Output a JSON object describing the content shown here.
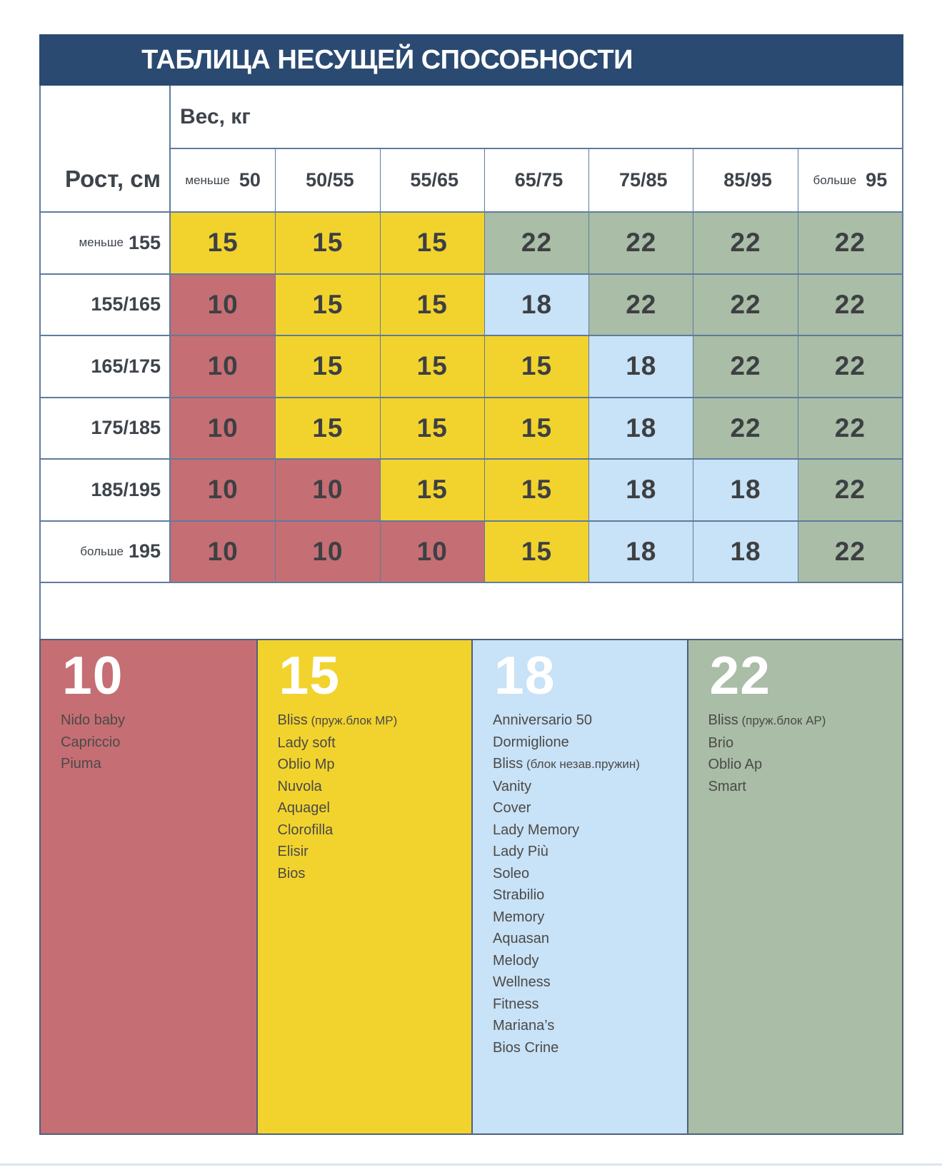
{
  "colors": {
    "navy": "#2b4a72",
    "red": "#c56e74",
    "yellow": "#f2d32e",
    "blue": "#c8e2f7",
    "green": "#a9bda7",
    "grid": "#5f7b9c",
    "lborder": "#4f607a",
    "ink": "#3d4043",
    "head": "#3e444b",
    "product": "#4b4a47",
    "pageline": "#dde5ef"
  },
  "title": "ТАБЛИЦА НЕСУЩЕЙ СПОСОБНОСТИ",
  "axes": {
    "weight_label": "Вес, кг",
    "height_label": "Рост, см"
  },
  "weight_columns": [
    {
      "prefix": "меньше",
      "value": "50"
    },
    {
      "prefix": "",
      "value": "50/55"
    },
    {
      "prefix": "",
      "value": "55/65"
    },
    {
      "prefix": "",
      "value": "65/75"
    },
    {
      "prefix": "",
      "value": "75/85"
    },
    {
      "prefix": "",
      "value": "85/95"
    },
    {
      "prefix": "больше",
      "value": "95"
    }
  ],
  "rows": [
    {
      "prefix": "меньше",
      "value": "155",
      "cells": [
        {
          "v": "15",
          "tone": "yellow"
        },
        {
          "v": "15",
          "tone": "yellow"
        },
        {
          "v": "15",
          "tone": "yellow"
        },
        {
          "v": "22",
          "tone": "green"
        },
        {
          "v": "22",
          "tone": "green"
        },
        {
          "v": "22",
          "tone": "green"
        },
        {
          "v": "22",
          "tone": "green"
        }
      ]
    },
    {
      "prefix": "",
      "value": "155/165",
      "cells": [
        {
          "v": "10",
          "tone": "red"
        },
        {
          "v": "15",
          "tone": "yellow"
        },
        {
          "v": "15",
          "tone": "yellow"
        },
        {
          "v": "18",
          "tone": "blue"
        },
        {
          "v": "22",
          "tone": "green"
        },
        {
          "v": "22",
          "tone": "green"
        },
        {
          "v": "22",
          "tone": "green"
        }
      ]
    },
    {
      "prefix": "",
      "value": "165/175",
      "cells": [
        {
          "v": "10",
          "tone": "red"
        },
        {
          "v": "15",
          "tone": "yellow"
        },
        {
          "v": "15",
          "tone": "yellow"
        },
        {
          "v": "15",
          "tone": "yellow"
        },
        {
          "v": "18",
          "tone": "blue"
        },
        {
          "v": "22",
          "tone": "green"
        },
        {
          "v": "22",
          "tone": "green"
        }
      ]
    },
    {
      "prefix": "",
      "value": "175/185",
      "cells": [
        {
          "v": "10",
          "tone": "red"
        },
        {
          "v": "15",
          "tone": "yellow"
        },
        {
          "v": "15",
          "tone": "yellow"
        },
        {
          "v": "15",
          "tone": "yellow"
        },
        {
          "v": "18",
          "tone": "blue"
        },
        {
          "v": "22",
          "tone": "green"
        },
        {
          "v": "22",
          "tone": "green"
        }
      ]
    },
    {
      "prefix": "",
      "value": "185/195",
      "cells": [
        {
          "v": "10",
          "tone": "red"
        },
        {
          "v": "10",
          "tone": "red"
        },
        {
          "v": "15",
          "tone": "yellow"
        },
        {
          "v": "15",
          "tone": "yellow"
        },
        {
          "v": "18",
          "tone": "blue"
        },
        {
          "v": "18",
          "tone": "blue"
        },
        {
          "v": "22",
          "tone": "green"
        }
      ]
    },
    {
      "prefix": "больше",
      "value": "195",
      "cells": [
        {
          "v": "10",
          "tone": "red"
        },
        {
          "v": "10",
          "tone": "red"
        },
        {
          "v": "10",
          "tone": "red"
        },
        {
          "v": "15",
          "tone": "yellow"
        },
        {
          "v": "18",
          "tone": "blue"
        },
        {
          "v": "18",
          "tone": "blue"
        },
        {
          "v": "22",
          "tone": "green"
        }
      ]
    }
  ],
  "legend": [
    {
      "score": "10",
      "tone": "red",
      "products": [
        {
          "name": "Nido baby",
          "note": ""
        },
        {
          "name": "Capriccio",
          "note": ""
        },
        {
          "name": "Piuma",
          "note": ""
        }
      ]
    },
    {
      "score": "15",
      "tone": "yellow",
      "products": [
        {
          "name": "Bliss",
          "note": "(пруж.блок MP)"
        },
        {
          "name": "Lady soft",
          "note": ""
        },
        {
          "name": "Oblio Mp",
          "note": ""
        },
        {
          "name": "Nuvola",
          "note": ""
        },
        {
          "name": "Aquagel",
          "note": ""
        },
        {
          "name": "Clorofilla",
          "note": ""
        },
        {
          "name": "Elisir",
          "note": ""
        },
        {
          "name": "Bios",
          "note": ""
        }
      ]
    },
    {
      "score": "18",
      "tone": "blue",
      "products": [
        {
          "name": "Anniversario 50",
          "note": ""
        },
        {
          "name": "Dormiglione",
          "note": ""
        },
        {
          "name": "Bliss",
          "note": "(блок незав.пружин)"
        },
        {
          "name": "Vanity",
          "note": ""
        },
        {
          "name": "Cover",
          "note": ""
        },
        {
          "name": "Lady Memory",
          "note": ""
        },
        {
          "name": "Lady Più",
          "note": ""
        },
        {
          "name": "Soleo",
          "note": ""
        },
        {
          "name": "Strabilio",
          "note": ""
        },
        {
          "name": "Memory",
          "note": ""
        },
        {
          "name": "Aquasan",
          "note": ""
        },
        {
          "name": "Melody",
          "note": ""
        },
        {
          "name": "Wellness",
          "note": ""
        },
        {
          "name": "Fitness",
          "note": ""
        },
        {
          "name": "Mariana’s",
          "note": ""
        },
        {
          "name": "Bios Crine",
          "note": ""
        }
      ]
    },
    {
      "score": "22",
      "tone": "green",
      "products": [
        {
          "name": "Bliss",
          "note": "(пруж.блок AP)"
        },
        {
          "name": "Brio",
          "note": ""
        },
        {
          "name": "Oblio Ap",
          "note": ""
        },
        {
          "name": "Smart",
          "note": ""
        }
      ]
    }
  ],
  "chart_data": {
    "type": "table",
    "title": "ТАБЛИЦА НЕСУЩЕЙ СПОСОБНОСТИ",
    "xlabel": "Вес, кг",
    "ylabel": "Рост, см",
    "x_categories": [
      "меньше 50",
      "50/55",
      "55/65",
      "65/75",
      "75/85",
      "85/95",
      "больше 95"
    ],
    "y_categories": [
      "меньше 155",
      "155/165",
      "165/175",
      "175/185",
      "185/195",
      "больше 195"
    ],
    "values": [
      [
        15,
        15,
        15,
        22,
        22,
        22,
        22
      ],
      [
        10,
        15,
        15,
        18,
        22,
        22,
        22
      ],
      [
        10,
        15,
        15,
        15,
        18,
        22,
        22
      ],
      [
        10,
        15,
        15,
        15,
        18,
        22,
        22
      ],
      [
        10,
        10,
        15,
        15,
        18,
        18,
        22
      ],
      [
        10,
        10,
        10,
        15,
        18,
        18,
        22
      ]
    ],
    "value_colors": {
      "10": "#c56e74",
      "15": "#f2d32e",
      "18": "#c8e2f7",
      "22": "#a9bda7"
    },
    "legend_position": "bottom"
  }
}
